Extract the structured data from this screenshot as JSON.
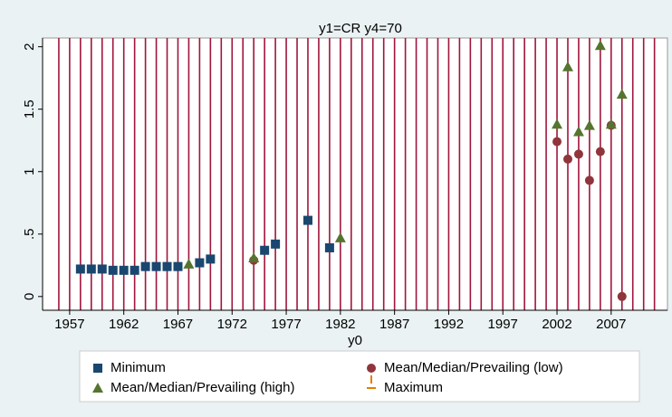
{
  "chart_data": {
    "type": "scatter",
    "title": "y1=CR y4=70",
    "x_label": "y0",
    "xlim": [
      1954.5,
      2012.2
    ],
    "ylim": [
      -0.11,
      2.07
    ],
    "xticks": [
      1957,
      1962,
      1967,
      1972,
      1977,
      1982,
      1987,
      1992,
      1997,
      2002,
      2007
    ],
    "yticks": [
      0,
      {
        "value": 0.5,
        "label": ".5"
      },
      1,
      1.5,
      2
    ],
    "year_lines": {
      "start": 1956,
      "end": 2011,
      "step": 1,
      "color": "#a0163c"
    },
    "series": [
      {
        "name": "Minimum",
        "color": "#1a476f",
        "marker": "square",
        "x": [
          1958,
          1959,
          1960,
          1961,
          1962,
          1963,
          1964,
          1965,
          1966,
          1967,
          1969,
          1970,
          1975,
          1976,
          1979,
          1981
        ],
        "values": [
          0.22,
          0.22,
          0.22,
          0.21,
          0.21,
          0.21,
          0.24,
          0.24,
          0.24,
          0.24,
          0.27,
          0.3,
          0.37,
          0.42,
          0.61,
          0.39
        ]
      },
      {
        "name": "Mean/Median/Prevailing (low)",
        "color": "#90353b",
        "marker": "circle",
        "x": [
          1974,
          2002,
          2003,
          2004,
          2005,
          2006,
          2007,
          2008
        ],
        "values": [
          0.29,
          1.24,
          1.1,
          1.14,
          0.93,
          1.16,
          1.37,
          0
        ]
      },
      {
        "name": "Mean/Median/Prevailing (high)",
        "color": "#55752f",
        "marker": "triangle",
        "x": [
          1968,
          1974,
          1982,
          2002,
          2003,
          2004,
          2005,
          2006,
          2007,
          2008
        ],
        "values": [
          0.26,
          0.31,
          0.47,
          1.38,
          1.84,
          1.32,
          1.37,
          2.01,
          1.38,
          1.62
        ]
      },
      {
        "name": "Maximum",
        "color": "#e37e00",
        "marker": "plus",
        "x": [],
        "values": []
      }
    ]
  }
}
